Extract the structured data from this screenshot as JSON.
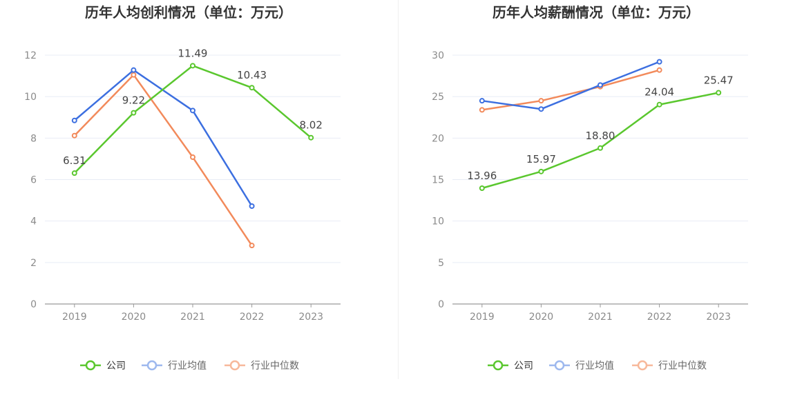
{
  "colors": {
    "company": "#5ac72e",
    "industry_avg": "#3c6fe0",
    "industry_median": "#f28a5b",
    "legend_avg_faded": "#9db8ee",
    "legend_median_faded": "#f7b89a",
    "grid": "#e8ecf5",
    "axis": "#999999"
  },
  "legend": {
    "company": "公司",
    "industry_avg": "行业均值",
    "industry_median": "行业中位数"
  },
  "chart_data": [
    {
      "type": "line",
      "title": "历年人均创利情况（单位：万元）",
      "categories": [
        "2019",
        "2020",
        "2021",
        "2022",
        "2023"
      ],
      "ylim": [
        0,
        12
      ],
      "yticks": [
        "0",
        "2",
        "4",
        "6",
        "8",
        "10",
        "12"
      ],
      "grid": true,
      "legend_position": "bottom",
      "series": [
        {
          "key": "company",
          "name": "公司",
          "values": [
            6.31,
            9.22,
            11.49,
            10.43,
            8.02
          ],
          "labels": [
            "6.31",
            "9.22",
            "11.49",
            "10.43",
            "8.02"
          ]
        },
        {
          "key": "industry_avg",
          "name": "行业均值",
          "values": [
            8.85,
            11.28,
            9.33,
            4.72,
            null
          ]
        },
        {
          "key": "industry_median",
          "name": "行业中位数",
          "values": [
            8.12,
            11.05,
            7.08,
            2.82,
            null
          ]
        }
      ]
    },
    {
      "type": "line",
      "title": "历年人均薪酬情况（单位：万元）",
      "categories": [
        "2019",
        "2020",
        "2021",
        "2022",
        "2023"
      ],
      "ylim": [
        0,
        30
      ],
      "yticks": [
        "0",
        "5",
        "10",
        "15",
        "20",
        "25",
        "30"
      ],
      "grid": true,
      "legend_position": "bottom",
      "series": [
        {
          "key": "company",
          "name": "公司",
          "values": [
            13.96,
            15.97,
            18.8,
            24.04,
            25.47
          ],
          "labels": [
            "13.96",
            "15.97",
            "18.80",
            "24.04",
            "25.47"
          ]
        },
        {
          "key": "industry_avg",
          "name": "行业均值",
          "values": [
            24.5,
            23.5,
            26.4,
            29.2,
            null
          ]
        },
        {
          "key": "industry_median",
          "name": "行业中位数",
          "values": [
            23.4,
            24.5,
            26.2,
            28.2,
            null
          ]
        }
      ]
    }
  ]
}
